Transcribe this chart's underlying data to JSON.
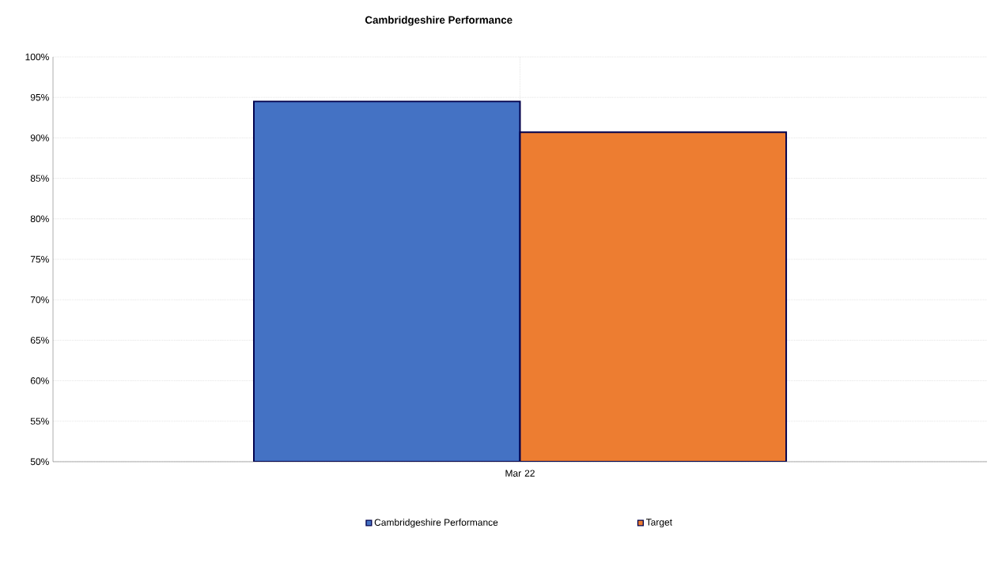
{
  "chart_data": {
    "type": "bar",
    "title": "Cambridgeshire Performance",
    "categories": [
      "Mar 22"
    ],
    "series": [
      {
        "name": "Cambridgeshire Performance",
        "color": "#4472c4",
        "values": [
          94.5
        ]
      },
      {
        "name": "Target",
        "color": "#ed7d31",
        "values": [
          90.7
        ]
      }
    ],
    "ylim": [
      50,
      100
    ],
    "yticks": [
      {
        "value": 50,
        "label": "50%"
      },
      {
        "value": 55,
        "label": "55%"
      },
      {
        "value": 60,
        "label": "60%"
      },
      {
        "value": 65,
        "label": "65%"
      },
      {
        "value": 70,
        "label": "70%"
      },
      {
        "value": 75,
        "label": "75%"
      },
      {
        "value": 80,
        "label": "80%"
      },
      {
        "value": 85,
        "label": "85%"
      },
      {
        "value": 90,
        "label": "90%"
      },
      {
        "value": 95,
        "label": "95%"
      },
      {
        "value": 100,
        "label": "100%"
      }
    ],
    "grid": true,
    "legend": "bottom"
  }
}
